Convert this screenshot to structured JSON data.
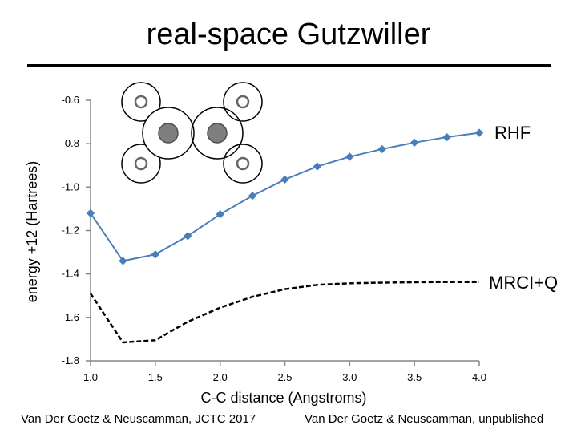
{
  "slide": {
    "title": "real-space Gutzwiller",
    "footer_left": "Van Der Goetz & Neuscamman, JCTC 2017",
    "footer_right": "Van Der Goetz & Neuscamman, unpublished"
  },
  "colors": {
    "rhf": "#4a7ebb",
    "mrciq": "#000000",
    "atom_large_fill": "#7f7f7f",
    "atom_ring": "#000000"
  },
  "chart_data": {
    "type": "line",
    "xlabel": "C-C distance (Angstroms)",
    "ylabel": "energy +12 (Hartrees)",
    "xlim": [
      1.0,
      4.0
    ],
    "ylim": [
      -1.8,
      -0.6
    ],
    "xticks": [
      1.0,
      1.5,
      2.0,
      2.5,
      3.0,
      3.5,
      4.0
    ],
    "xtick_labels": [
      "1.0",
      "1.5",
      "2.0",
      "2.5",
      "3.0",
      "3.5",
      "4.0"
    ],
    "yticks": [
      -0.6,
      -0.8,
      -1.0,
      -1.2,
      -1.4,
      -1.6,
      -1.8
    ],
    "ytick_labels": [
      "-0.6",
      "-0.8",
      "-1.0",
      "-1.2",
      "-1.4",
      "-1.6",
      "-1.8"
    ],
    "grid": false,
    "series": [
      {
        "name": "RHF",
        "style": "solid",
        "marker": "diamond",
        "x": [
          1.0,
          1.25,
          1.5,
          1.75,
          2.0,
          2.25,
          2.5,
          2.75,
          3.0,
          3.25,
          3.5,
          3.75,
          4.0
        ],
        "y": [
          -1.12,
          -1.34,
          -1.31,
          -1.225,
          -1.125,
          -1.04,
          -0.965,
          -0.905,
          -0.86,
          -0.825,
          -0.795,
          -0.77,
          -0.75
        ]
      },
      {
        "name": "MRCI+Q",
        "style": "dashed",
        "marker": "none",
        "x": [
          1.0,
          1.25,
          1.5,
          1.75,
          2.0,
          2.25,
          2.5,
          2.75,
          3.0,
          3.25,
          3.5,
          3.75,
          4.0
        ],
        "y": [
          -1.49,
          -1.715,
          -1.705,
          -1.62,
          -1.555,
          -1.505,
          -1.47,
          -1.45,
          -1.443,
          -1.44,
          -1.438,
          -1.437,
          -1.437
        ]
      }
    ]
  }
}
